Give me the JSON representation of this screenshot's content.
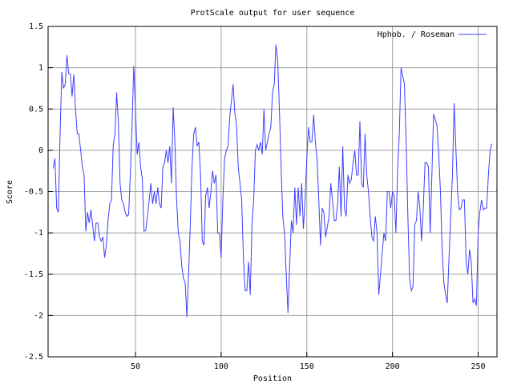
{
  "chart_data": {
    "type": "line",
    "title": "ProtScale output for user sequence",
    "x_label": "Position",
    "y_label": "Score",
    "xlim": [
      -1,
      261
    ],
    "ylim": [
      -2.5,
      1.5
    ],
    "xticks": [
      50,
      100,
      150,
      200,
      250
    ],
    "yticks": [
      -2.5,
      -2,
      -1.5,
      -1,
      -0.5,
      0,
      0.5,
      1,
      1.5
    ],
    "grid": true,
    "legend": "upper right",
    "x": [
      2,
      3,
      4,
      5,
      6,
      7,
      8,
      9,
      10,
      11,
      12,
      13,
      14,
      15,
      16,
      17,
      18,
      19,
      20,
      21,
      22,
      23,
      24,
      25,
      26,
      27,
      28,
      29,
      30,
      31,
      32,
      33,
      34,
      35,
      36,
      37,
      38,
      39,
      40,
      41,
      42,
      43,
      44,
      45,
      46,
      47,
      48,
      49,
      50,
      51,
      52,
      53,
      54,
      55,
      56,
      57,
      58,
      59,
      60,
      61,
      62,
      63,
      64,
      65,
      66,
      67,
      68,
      69,
      70,
      71,
      72,
      73,
      74,
      75,
      76,
      77,
      78,
      79,
      80,
      81,
      82,
      83,
      84,
      85,
      86,
      87,
      88,
      89,
      90,
      91,
      92,
      93,
      94,
      95,
      96,
      97,
      98,
      99,
      100,
      101,
      102,
      103,
      104,
      105,
      106,
      107,
      108,
      109,
      110,
      112,
      113,
      114,
      115,
      116,
      117,
      118,
      119,
      120,
      121,
      122,
      123,
      124,
      125,
      126,
      127,
      128,
      129,
      130,
      131,
      132,
      133,
      134,
      135,
      136,
      137,
      138,
      139,
      140,
      141,
      142,
      143,
      144,
      145,
      146,
      147,
      148,
      149,
      150,
      151,
      152,
      153,
      154,
      155,
      156,
      157,
      158,
      159,
      160,
      161,
      163,
      164,
      165,
      166,
      167,
      168,
      169,
      170,
      171,
      172,
      173,
      174,
      175,
      176,
      177,
      178,
      179,
      180,
      181,
      182,
      183,
      184,
      185,
      186,
      187,
      188,
      189,
      190,
      191,
      192,
      195,
      196,
      197,
      198,
      199,
      200,
      201,
      202,
      203,
      204,
      205,
      207,
      208,
      209,
      210,
      211,
      212,
      213,
      214,
      215,
      216,
      217,
      218,
      219,
      220,
      221,
      222,
      223,
      224,
      226,
      227,
      228,
      229,
      230,
      231,
      232,
      233,
      234,
      235,
      236,
      238,
      239,
      240,
      241,
      242,
      243,
      244,
      245,
      246,
      247,
      248,
      249,
      250,
      251,
      252,
      253,
      254,
      255,
      256,
      257,
      258
    ],
    "series": [
      {
        "name": "Hphob. / Roseman",
        "color": "#3f3fff",
        "values": [
          -0.22,
          -0.1,
          -0.7,
          -0.75,
          0.2,
          0.95,
          0.75,
          0.8,
          1.15,
          0.93,
          0.92,
          0.65,
          0.92,
          0.5,
          0.2,
          0.2,
          0,
          -0.2,
          -0.3,
          -0.98,
          -0.75,
          -0.88,
          -0.72,
          -0.9,
          -1.1,
          -0.88,
          -0.88,
          -1.05,
          -1.1,
          -1.05,
          -1.3,
          -1.15,
          -0.85,
          -0.65,
          -0.6,
          0.05,
          0.2,
          0.7,
          0.35,
          -0.4,
          -0.6,
          -0.65,
          -0.75,
          -0.8,
          -0.78,
          -0.3,
          0.3,
          1.02,
          0.5,
          -0.05,
          0.1,
          -0.2,
          -0.35,
          -0.98,
          -0.97,
          -0.8,
          -0.6,
          -0.4,
          -0.65,
          -0.5,
          -0.65,
          -0.45,
          -0.65,
          -0.7,
          -0.2,
          -0.15,
          0,
          -0.15,
          0.05,
          -0.4,
          0.52,
          0.1,
          -0.6,
          -1,
          -1.1,
          -1.4,
          -1.55,
          -1.6,
          -2.02,
          -1.5,
          -0.9,
          -0.2,
          0.2,
          0.28,
          0.05,
          0.1,
          -0.3,
          -1.1,
          -1.15,
          -0.55,
          -0.45,
          -0.7,
          -0.5,
          -0.25,
          -0.4,
          -0.3,
          -1,
          -1,
          -1.3,
          -0.6,
          -0.1,
          0,
          0.05,
          0.4,
          0.6,
          0.8,
          0.45,
          0.3,
          -0.2,
          -0.6,
          -1.3,
          -1.7,
          -1.7,
          -1.35,
          -1.75,
          -0.9,
          -0.6,
          0,
          0.07,
          0,
          0.1,
          -0.05,
          0.5,
          0,
          0.1,
          0.2,
          0.28,
          0.7,
          0.8,
          1.28,
          1.1,
          0.5,
          -0.2,
          -0.8,
          -1,
          -1.5,
          -1.97,
          -1.4,
          -0.85,
          -1,
          -0.45,
          -0.9,
          -0.45,
          -0.8,
          -0.4,
          -0.95,
          -0.6,
          -0.1,
          0.28,
          0.1,
          0.1,
          0.43,
          0.1,
          -0.1,
          -0.6,
          -1.15,
          -0.7,
          -0.75,
          -1.05,
          -0.8,
          -0.4,
          -0.6,
          -0.85,
          -0.85,
          -0.65,
          -0.2,
          -0.8,
          0.05,
          -0.7,
          -0.8,
          -0.3,
          -0.4,
          -0.35,
          -0.15,
          0,
          -0.3,
          -0.3,
          0.35,
          -0.4,
          -0.45,
          0.2,
          -0.3,
          -0.5,
          -0.8,
          -1.05,
          -1.1,
          -0.8,
          -1,
          -1.75,
          -1,
          -1.1,
          -0.5,
          -0.5,
          -0.7,
          -0.5,
          -0.55,
          -1,
          -0.25,
          0.2,
          1,
          0.8,
          0.1,
          -0.8,
          -1.55,
          -1.7,
          -1.65,
          -0.9,
          -0.85,
          -0.5,
          -0.7,
          -1.1,
          -0.7,
          -0.15,
          -0.15,
          -0.2,
          -1,
          -0.3,
          0.44,
          0.3,
          -0.05,
          -0.5,
          -1.2,
          -1.6,
          -1.75,
          -1.85,
          -1.3,
          -0.8,
          -0.3,
          0.57,
          -0.5,
          -0.72,
          -0.7,
          -0.6,
          -0.6,
          -1.35,
          -1.5,
          -1.2,
          -1.35,
          -1.85,
          -1.8,
          -1.88,
          -1,
          -0.75,
          -0.6,
          -0.72,
          -0.7,
          -0.7,
          -0.3,
          0,
          0.08
        ]
      }
    ]
  }
}
